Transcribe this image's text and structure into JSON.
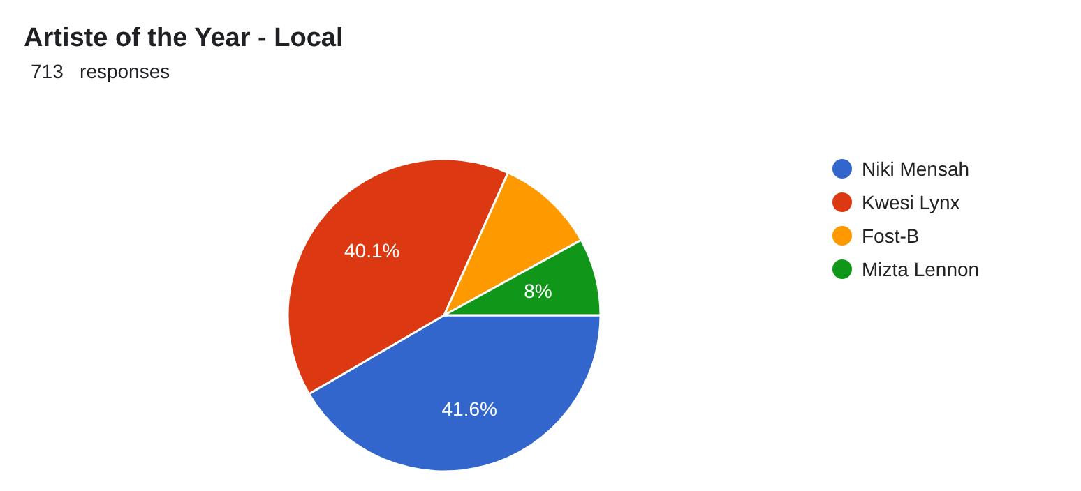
{
  "chart_data": {
    "type": "pie",
    "title": "Artiste of the Year - Local",
    "subtitle": "713   responses",
    "categories": [
      "Niki Mensah",
      "Kwesi Lynx",
      "Fost-B",
      "Mizta Lennon"
    ],
    "values": [
      41.6,
      40.1,
      10.3,
      8
    ],
    "colors": [
      "#3366cc",
      "#dc3912",
      "#ff9900",
      "#109618"
    ],
    "value_labels": [
      "41.6%",
      "40.1%",
      null,
      "8%"
    ],
    "legend": "right"
  }
}
